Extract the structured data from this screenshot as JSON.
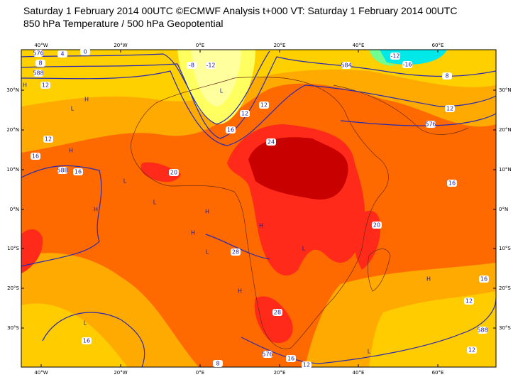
{
  "header": {
    "title": "Saturday 1 February 2014 00UTC ©ECMWF Analysis t+000 VT: Saturday 1 February 2014 00UTC",
    "subtitle": "850 hPa Temperature / 500 hPa Geopotential"
  },
  "map": {
    "lon_labels": [
      "40°W",
      "20°W",
      "0°E",
      "20°E",
      "40°E",
      "60°E"
    ],
    "lat_labels": [
      "30°N",
      "20°N",
      "10°N",
      "0°N",
      "10°S",
      "20°S",
      "30°S"
    ],
    "contour_labels": [
      "576",
      "4",
      "0",
      "8",
      "588",
      "12",
      "-8",
      "-12",
      "12",
      "12",
      "16",
      "24",
      "20",
      "12",
      "16",
      "588",
      "16",
      "28",
      "20",
      "16",
      "576",
      "12",
      "584",
      "-12",
      "-16",
      "8",
      "16",
      "12",
      "588",
      "12",
      "16",
      "576",
      "16",
      "12",
      "8",
      "28"
    ],
    "pressure_labels": [
      "H",
      "L",
      "H",
      "L",
      "H",
      "L",
      "H",
      "L",
      "H",
      "H",
      "L",
      "H",
      "L",
      "H",
      "L",
      "H",
      "L"
    ]
  }
}
